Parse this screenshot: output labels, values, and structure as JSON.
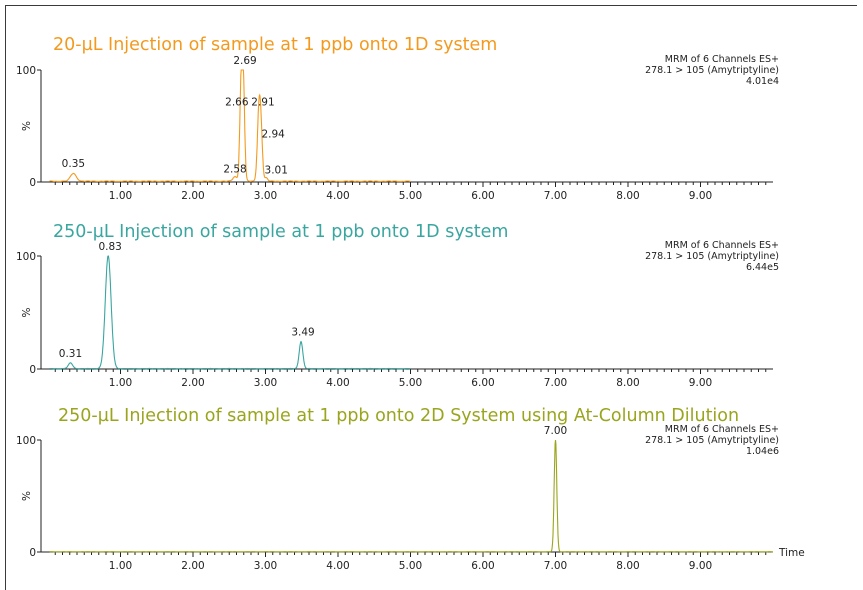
{
  "chart_data": [
    {
      "type": "line",
      "title": "20-µL Injection of sample at 1 ppb onto 1D system",
      "color": "#f39a1e",
      "info": [
        "MRM of 6 Channels ES+",
        "278.1 > 105 (Amytriptyline)",
        "4.01e4"
      ],
      "ylabel": "%",
      "xlabel": "",
      "xlim": [
        0,
        10
      ],
      "ylim": [
        0,
        100
      ],
      "x_ticks": [
        "1.00",
        "2.00",
        "3.00",
        "4.00",
        "5.00",
        "6.00",
        "7.00",
        "8.00",
        "9.00"
      ],
      "y_ticks": [
        "0",
        "100"
      ],
      "trace_end": 5.0,
      "baseline": 1,
      "peaks": [
        {
          "x": 0.35,
          "y": 7,
          "w": 0.04
        },
        {
          "x": 2.58,
          "y": 4,
          "w": 0.03
        },
        {
          "x": 2.66,
          "y": 62,
          "w": 0.018
        },
        {
          "x": 2.69,
          "y": 100,
          "w": 0.02
        },
        {
          "x": 2.91,
          "y": 62,
          "w": 0.022
        },
        {
          "x": 2.94,
          "y": 35,
          "w": 0.02
        },
        {
          "x": 3.01,
          "y": 3,
          "w": 0.02
        }
      ],
      "peak_labels": [
        "0.35",
        "2.58",
        "2.66",
        "2.69",
        "2.91",
        "2.94",
        "3.01"
      ]
    },
    {
      "type": "line",
      "title": "250-µL  Injection of sample at 1 ppb onto 1D system",
      "color": "#3aa6a0",
      "info": [
        "MRM of 6 Channels ES+",
        "278.1 > 105 (Amytriptyline)",
        "6.44e5"
      ],
      "ylabel": "%",
      "xlabel": "",
      "xlim": [
        0,
        10
      ],
      "ylim": [
        0,
        100
      ],
      "x_ticks": [
        "1.00",
        "2.00",
        "3.00",
        "4.00",
        "5.00",
        "6.00",
        "7.00",
        "8.00",
        "9.00"
      ],
      "y_ticks": [
        "0",
        "100"
      ],
      "trace_end": 5.0,
      "baseline": 0.5,
      "peaks": [
        {
          "x": 0.31,
          "y": 5,
          "w": 0.03
        },
        {
          "x": 0.83,
          "y": 100,
          "w": 0.04
        },
        {
          "x": 3.49,
          "y": 24,
          "w": 0.025
        }
      ],
      "peak_labels": [
        "0.31",
        "0.83",
        "3.49"
      ]
    },
    {
      "type": "line",
      "title": "250-µL Injection of sample at 1 ppb onto 2D System using At-Column Dilution",
      "color": "#9aa51d",
      "info": [
        "MRM of 6 Channels ES+",
        "278.1 > 105 (Amytriptyline)",
        "1.04e6"
      ],
      "ylabel": "%",
      "xlabel": "Time",
      "xlim": [
        0,
        10
      ],
      "ylim": [
        0,
        100
      ],
      "x_ticks": [
        "1.00",
        "2.00",
        "3.00",
        "4.00",
        "5.00",
        "6.00",
        "7.00",
        "8.00",
        "9.00"
      ],
      "y_ticks": [
        "0",
        "100"
      ],
      "trace_end": 10.0,
      "baseline": 0.3,
      "peaks": [
        {
          "x": 7.0,
          "y": 100,
          "w": 0.018
        }
      ],
      "peak_labels": [
        "7.00"
      ]
    }
  ]
}
